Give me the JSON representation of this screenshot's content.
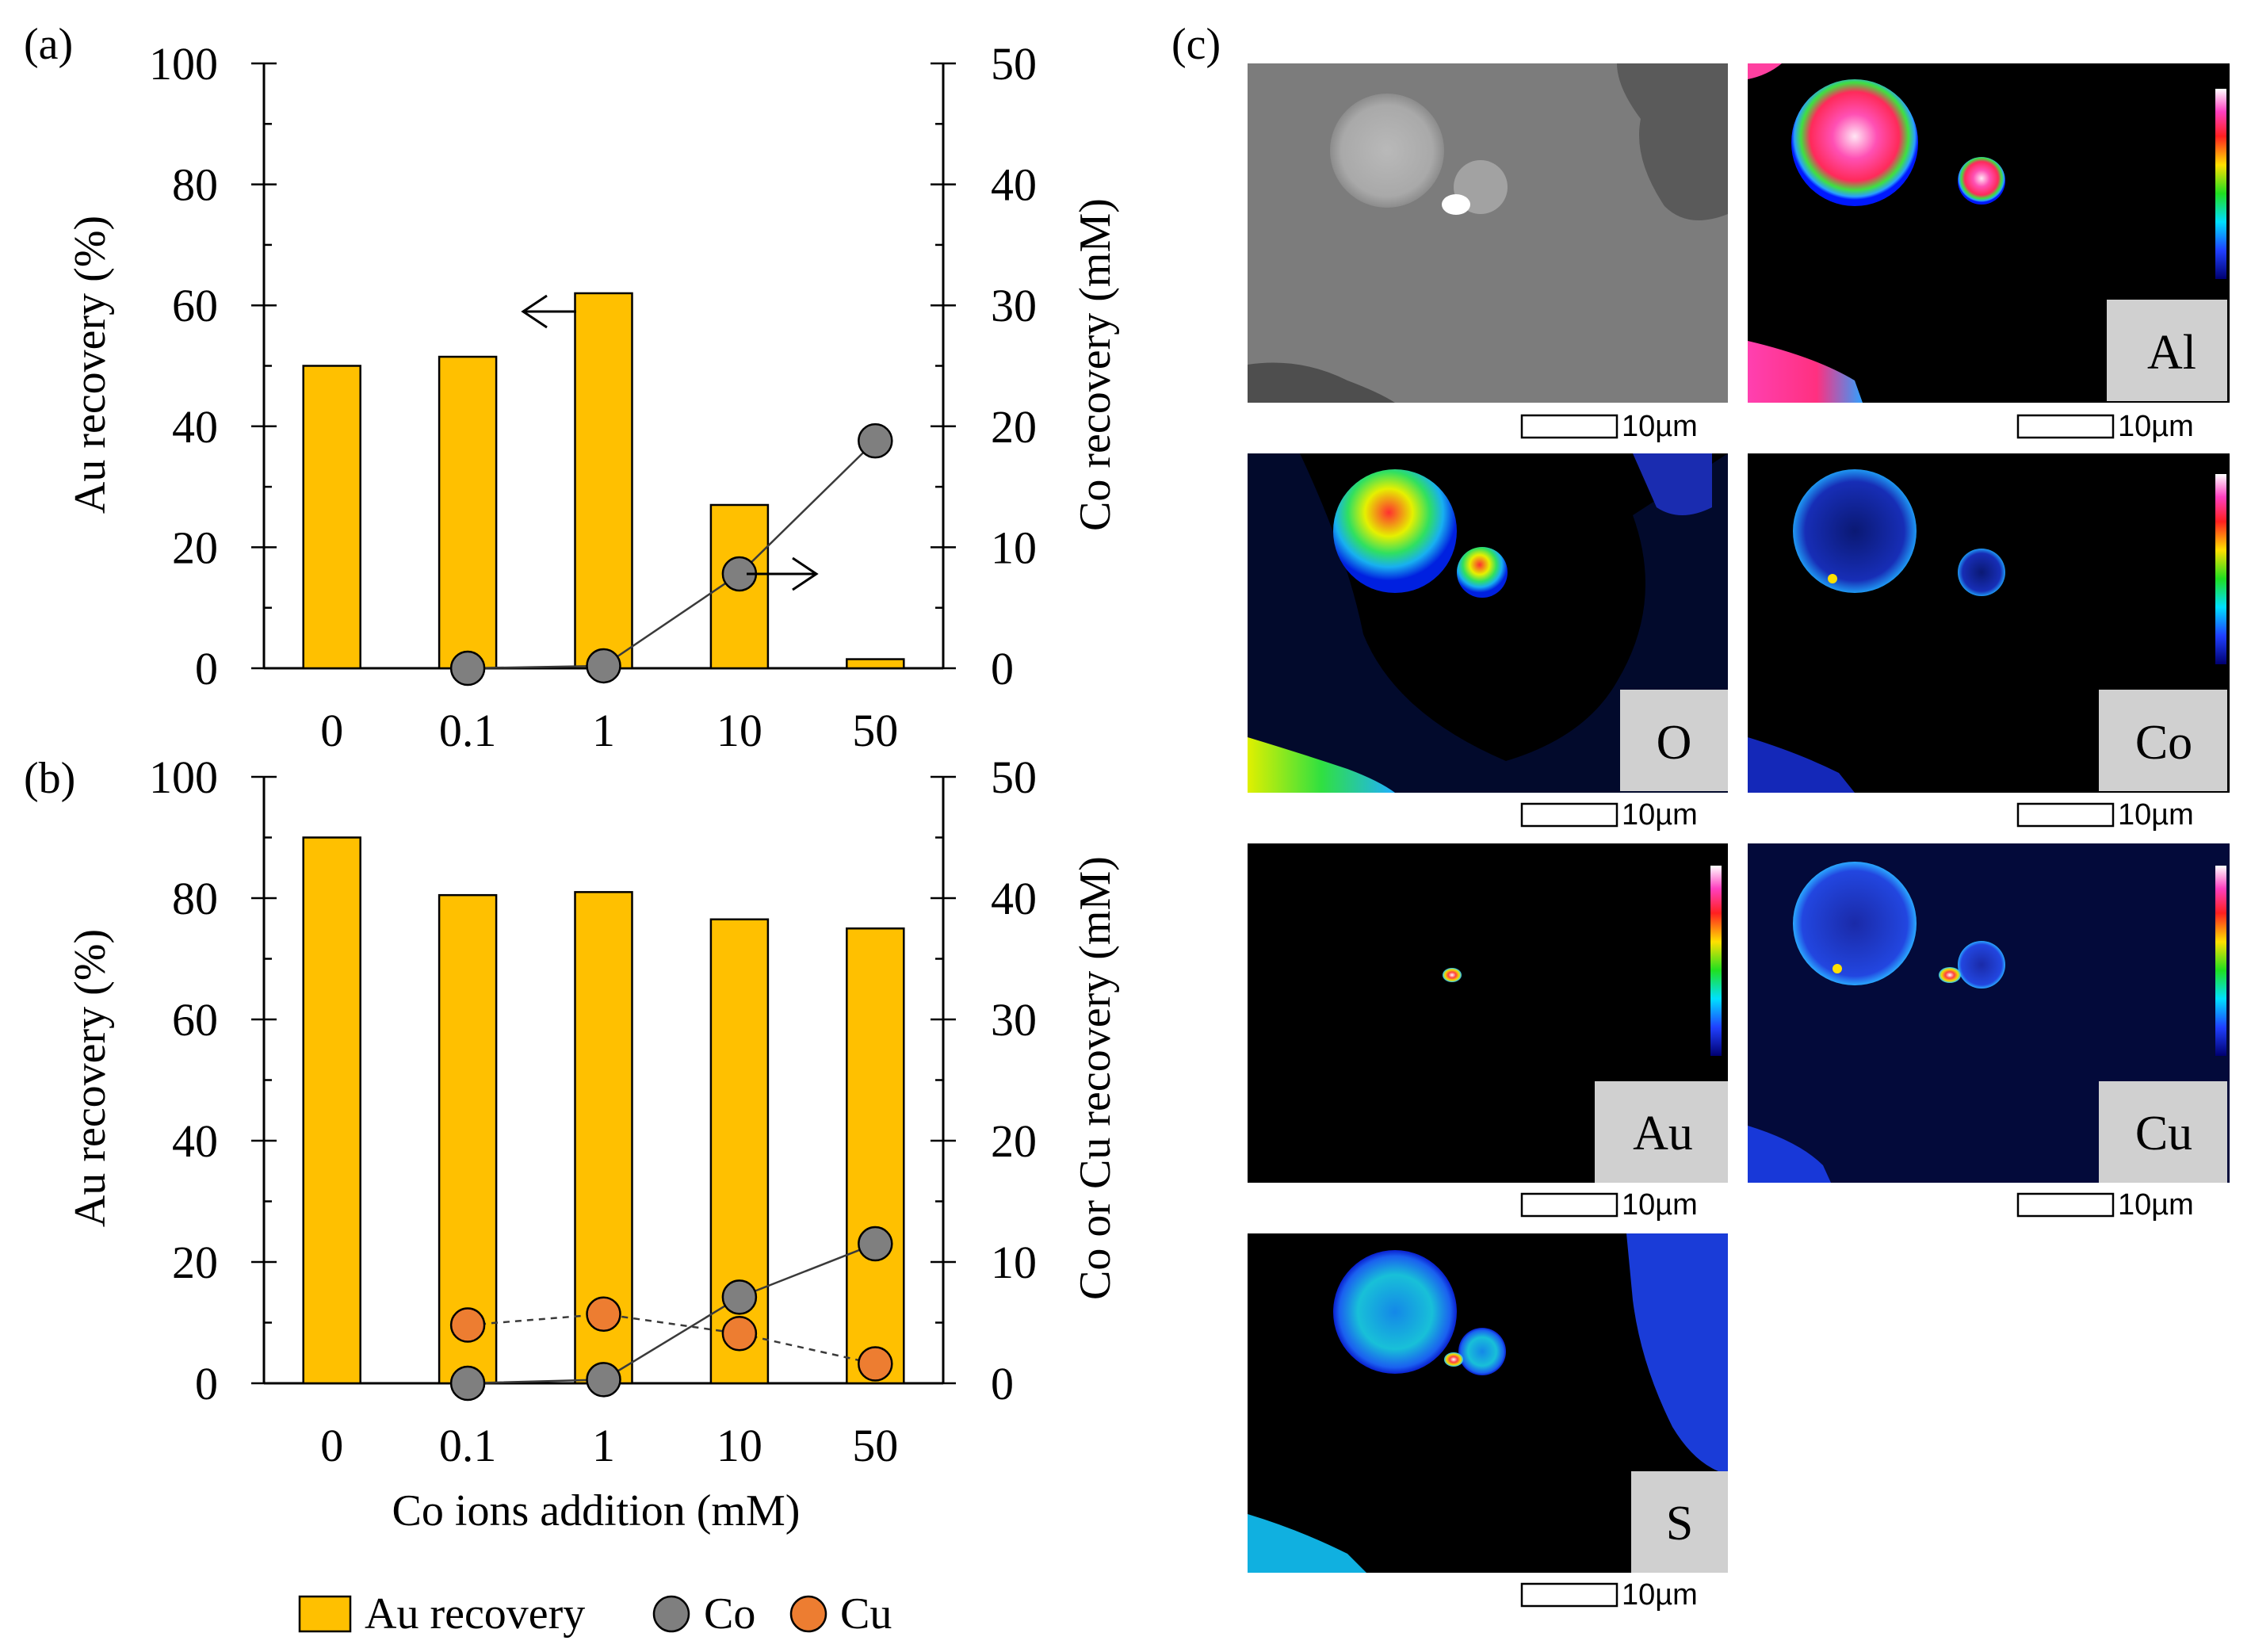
{
  "panel_labels": {
    "a": "(a)",
    "b": "(b)",
    "c": "(c)"
  },
  "colors": {
    "bar": "#FFC000",
    "co": "#7F7F7F",
    "cu": "#ED7D31",
    "axis": "#000000",
    "map_bg": "#000000"
  },
  "chart_data": [
    {
      "id": "panel-a",
      "type": "bar",
      "categories": [
        "0",
        "0.1",
        "1",
        "10",
        "50"
      ],
      "series": [
        {
          "name": "Au recovery",
          "axis": "left",
          "kind": "bar",
          "values": [
            50,
            51.5,
            62,
            27,
            1.5
          ]
        },
        {
          "name": "Co",
          "axis": "right",
          "kind": "line-marker",
          "values": [
            null,
            0,
            0.2,
            7.8,
            18.8
          ]
        }
      ],
      "ylabel": "Au recovery (%)",
      "y2label": "Co recovery (mM)",
      "ylim": [
        0,
        100
      ],
      "y2lim": [
        0,
        50
      ],
      "yticks": [
        "0",
        "20",
        "40",
        "60",
        "80",
        "100"
      ],
      "y2ticks": [
        "0",
        "10",
        "20",
        "30",
        "40",
        "50"
      ],
      "annotations": [
        "arrow-left near Au bar at 1 mM",
        "arrow-right near Co point at 10 mM"
      ]
    },
    {
      "id": "panel-b",
      "type": "bar",
      "categories": [
        "0",
        "0.1",
        "1",
        "10",
        "50"
      ],
      "series": [
        {
          "name": "Au recovery",
          "axis": "left",
          "kind": "bar",
          "values": [
            90,
            80.5,
            81,
            76.5,
            75
          ]
        },
        {
          "name": "Co",
          "axis": "right",
          "kind": "line-marker",
          "values": [
            null,
            0,
            0.3,
            7.1,
            11.5
          ]
        },
        {
          "name": "Cu",
          "axis": "right",
          "kind": "dashed-line-marker",
          "values": [
            null,
            4.8,
            5.7,
            4.1,
            1.6
          ]
        }
      ],
      "xlabel": "Co ions addition (mM)",
      "ylabel": "Au recovery (%)",
      "y2label": "Co or Cu recovery (mM)",
      "ylim": [
        0,
        100
      ],
      "y2lim": [
        0,
        50
      ],
      "yticks": [
        "0",
        "20",
        "40",
        "60",
        "80",
        "100"
      ],
      "y2ticks": [
        "0",
        "10",
        "20",
        "30",
        "40",
        "50"
      ]
    }
  ],
  "legend": [
    {
      "label": "Au recovery",
      "kind": "bar"
    },
    {
      "label": "Co",
      "kind": "co"
    },
    {
      "label": "Cu",
      "kind": "cu"
    }
  ],
  "maps": [
    {
      "id": "sem",
      "label": "",
      "scale": "10µm"
    },
    {
      "id": "al",
      "label": "Al",
      "scale": "10µm"
    },
    {
      "id": "o",
      "label": "O",
      "scale": "10µm"
    },
    {
      "id": "co",
      "label": "Co",
      "scale": "10µm"
    },
    {
      "id": "au",
      "label": "Au",
      "scale": "10µm"
    },
    {
      "id": "cu",
      "label": "Cu",
      "scale": "10µm"
    },
    {
      "id": "s",
      "label": "S",
      "scale": "10µm"
    }
  ]
}
